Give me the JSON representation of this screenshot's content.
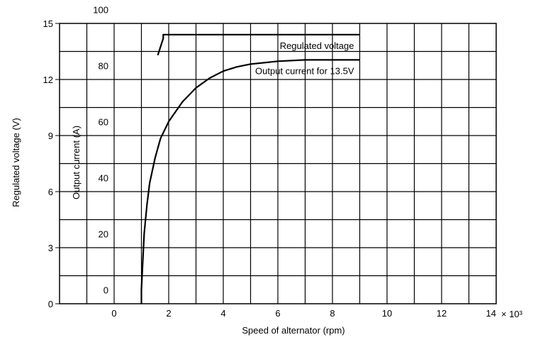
{
  "chart_data": {
    "type": "line",
    "xlabel": "Speed of alternator (rpm)",
    "x_multiplier_label": "× 10³",
    "x_ticks": [
      0,
      2,
      4,
      6,
      8,
      10,
      12,
      14
    ],
    "xlim": [
      -2,
      14
    ],
    "y_left_outer": {
      "label": "Regulated voltage (V)",
      "ticks": [
        0,
        3,
        6,
        9,
        12,
        15
      ],
      "lim": [
        0,
        15
      ]
    },
    "y_left_inner": {
      "label": "Output current (A)",
      "ticks": [
        0,
        20,
        40,
        60,
        80,
        100
      ],
      "lim": [
        -5,
        95
      ]
    },
    "grid": true,
    "series": [
      {
        "name": "Regulated voltage",
        "axis": "voltage",
        "x": [
          1.6,
          1.8,
          1.8,
          9.0
        ],
        "y": [
          13.3,
          14.2,
          14.4,
          14.4
        ]
      },
      {
        "name": "Output current for 13.5V",
        "axis": "current",
        "x": [
          1.0,
          1.0,
          1.05,
          1.1,
          1.2,
          1.3,
          1.5,
          1.7,
          2.0,
          2.5,
          3.0,
          3.5,
          4.0,
          4.5,
          5.0,
          6.0,
          7.0,
          8.0,
          9.0
        ],
        "y": [
          -5,
          0,
          10,
          20,
          30,
          38,
          47,
          54,
          60,
          67,
          72,
          75.5,
          78,
          79.5,
          80.5,
          81.5,
          82,
          82,
          82
        ]
      }
    ],
    "annotations": [
      {
        "text": "Regulated voltage",
        "target": "Regulated voltage"
      },
      {
        "text": "Output current for 13.5V",
        "target": "Output current for 13.5V"
      }
    ]
  }
}
